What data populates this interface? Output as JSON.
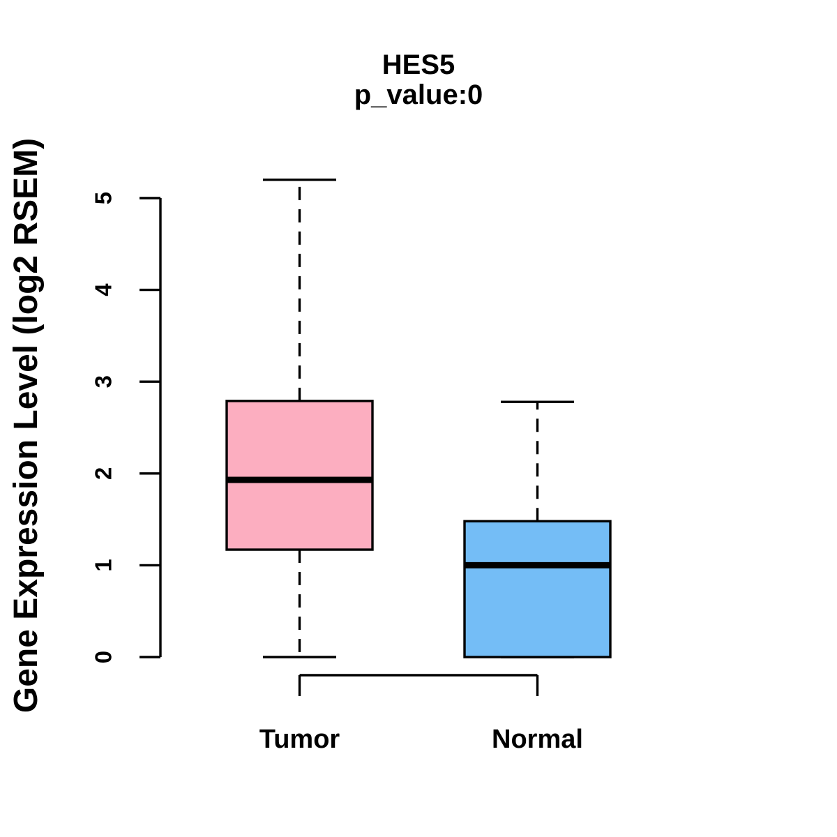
{
  "figure": {
    "background": "#ffffff",
    "foreground": "#000000"
  },
  "chart_data": {
    "type": "boxplot",
    "title": "HES5",
    "subtitle": "p_value:0",
    "ylabel": "Gene Expression Level (log2 RSEM)",
    "xlabel": "",
    "ylim": [
      0,
      5.2
    ],
    "yticks": [
      0,
      1,
      2,
      3,
      4,
      5
    ],
    "grid": false,
    "legend": "none",
    "groups": [
      {
        "label": "Tumor",
        "color": "#FCAEC0",
        "whisker_low": 0,
        "q1": 1.17,
        "median": 1.93,
        "q3": 2.79,
        "whisker_high": 5.2
      },
      {
        "label": "Normal",
        "color": "#74BDF6",
        "whisker_low": 0,
        "q1": 0,
        "median": 1.0,
        "q3": 1.48,
        "whisker_high": 2.78
      }
    ]
  }
}
